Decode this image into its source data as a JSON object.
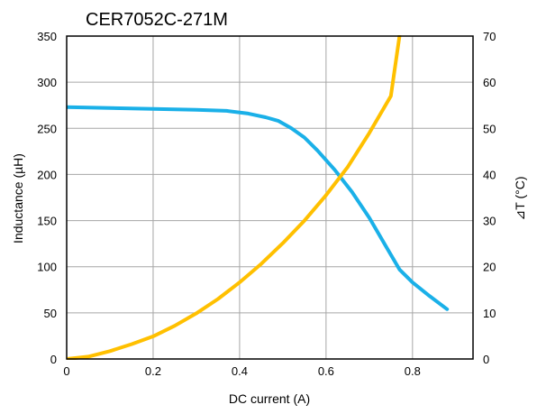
{
  "chart_data": {
    "type": "line",
    "title": "CER7052C-271M",
    "xlabel": "DC current (A)",
    "ylabel_left": "Inductance (µH)",
    "ylabel_right": "⊿T (°C)",
    "xlim": [
      0,
      0.94
    ],
    "ylim_left": [
      0,
      350
    ],
    "ylim_right": [
      0,
      70
    ],
    "x_ticks": [
      0,
      0.2,
      0.4,
      0.6,
      0.8
    ],
    "x_tick_labels": [
      "0",
      "0.2",
      "0.4",
      "0.6",
      "0.8"
    ],
    "y_left_ticks": [
      0,
      50,
      100,
      150,
      200,
      250,
      300,
      350
    ],
    "y_left_tick_labels": [
      "0",
      "50",
      "100",
      "150",
      "200",
      "250",
      "300",
      "350"
    ],
    "y_right_ticks": [
      0,
      10,
      20,
      30,
      40,
      50,
      60,
      70
    ],
    "y_right_tick_labels": [
      "0",
      "10",
      "20",
      "30",
      "40",
      "50",
      "60",
      "70"
    ],
    "grid": true,
    "series": [
      {
        "axis": "left",
        "color": "#1ab0e8",
        "x": [
          0.0,
          0.1,
          0.2,
          0.3,
          0.37,
          0.42,
          0.46,
          0.49,
          0.52,
          0.55,
          0.58,
          0.62,
          0.66,
          0.7,
          0.74,
          0.77,
          0.8,
          0.84,
          0.88
        ],
        "values": [
          273,
          272,
          271,
          270,
          269,
          266,
          262,
          258,
          250,
          240,
          226,
          205,
          181,
          153,
          121,
          97,
          83,
          68,
          54
        ]
      },
      {
        "axis": "right",
        "color": "#ffc000",
        "x": [
          0.0,
          0.05,
          0.1,
          0.15,
          0.2,
          0.25,
          0.3,
          0.35,
          0.4,
          0.45,
          0.5,
          0.55,
          0.6,
          0.65,
          0.7,
          0.75,
          0.77
        ],
        "values": [
          0,
          0.5,
          1.7,
          3.2,
          4.9,
          7.2,
          9.9,
          13,
          16.6,
          20.6,
          25.1,
          30,
          35.5,
          41.6,
          49,
          57,
          70
        ]
      }
    ]
  }
}
